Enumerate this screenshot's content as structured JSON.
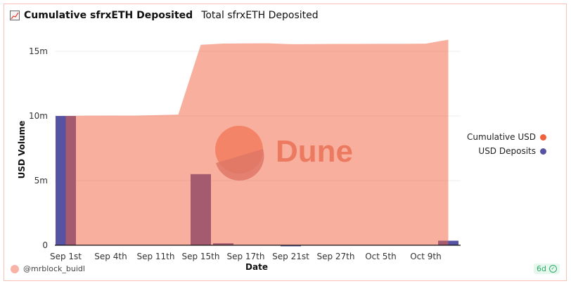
{
  "header": {
    "title": "Cumulative sfrxETH Deposited",
    "subtitle": "Total sfrxETH Deposited",
    "icon": "line-chart-icon"
  },
  "chart_data": {
    "type": "bar+area",
    "xlabel": "Date",
    "ylabel": "USD Volume",
    "ylim": [
      0,
      15900000
    ],
    "yticks": [
      {
        "value": 0,
        "label": "0"
      },
      {
        "value": 5000000,
        "label": "5m"
      },
      {
        "value": 10000000,
        "label": "10m"
      },
      {
        "value": 15000000,
        "label": "15m"
      }
    ],
    "categories": [
      "Sep 1st",
      "",
      "Sep 4th",
      "",
      "Sep 11th",
      "",
      "Sep 15th",
      "",
      "Sep 17th",
      "",
      "Sep 21st",
      "",
      "Sep 27th",
      "",
      "Oct 5th",
      "",
      "Oct 9th",
      ""
    ],
    "grid": true,
    "legend_position": "right",
    "series": [
      {
        "name": "Cumulative USD",
        "type": "area",
        "color": "#f1603c",
        "values": [
          10000000,
          10020000,
          10030000,
          10020000,
          10060000,
          10100000,
          15500000,
          15600000,
          15610000,
          15620000,
          15550000,
          15560000,
          15570000,
          15570000,
          15580000,
          15580000,
          15590000,
          15900000
        ]
      },
      {
        "name": "USD Deposits",
        "type": "bar",
        "color": "#5654a2",
        "values": [
          10000000,
          0,
          0,
          0,
          0,
          0,
          5500000,
          150000,
          0,
          0,
          -70000,
          0,
          0,
          0,
          0,
          0,
          0,
          350000
        ]
      }
    ]
  },
  "watermark": "Dune",
  "footer": {
    "user": "@mrblock_buidl",
    "age": "6d"
  }
}
